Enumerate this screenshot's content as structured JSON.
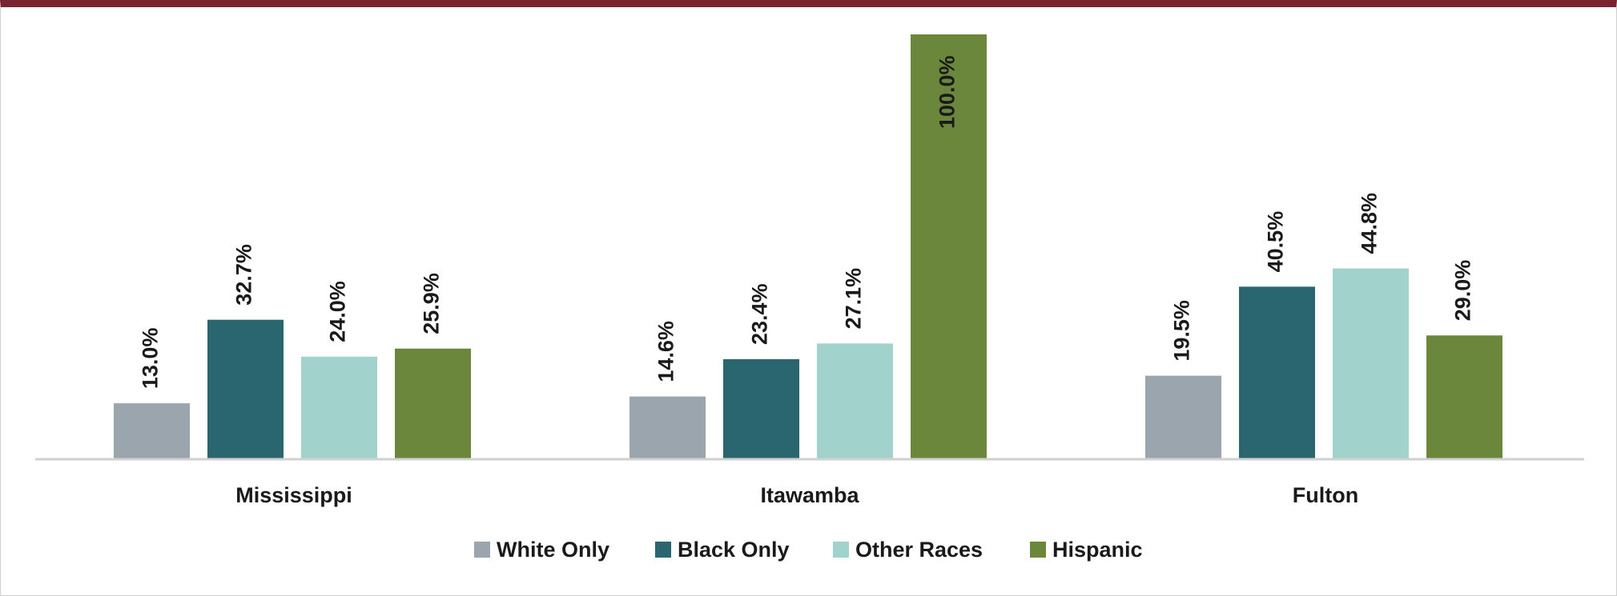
{
  "chart_data": {
    "type": "bar",
    "categories": [
      "Mississippi",
      "Itawamba",
      "Fulton"
    ],
    "series": [
      {
        "name": "White Only",
        "color": "#9aa5ae",
        "values": [
          13.0,
          14.6,
          19.5
        ],
        "labels": [
          "13.0%",
          "14.6%",
          "19.5%"
        ]
      },
      {
        "name": "Black Only",
        "color": "#29666f",
        "values": [
          32.7,
          23.4,
          40.5
        ],
        "labels": [
          "32.7%",
          "23.4%",
          "40.5%"
        ]
      },
      {
        "name": "Other Races",
        "color": "#a1d3cc",
        "values": [
          24.0,
          27.1,
          44.8
        ],
        "labels": [
          "24.0%",
          "27.1%",
          "44.8%"
        ]
      },
      {
        "name": "Hispanic",
        "color": "#6a873b",
        "values": [
          25.9,
          100.0,
          29.0
        ],
        "labels": [
          "25.9%",
          "100.0%",
          "29.0%"
        ]
      }
    ],
    "ylim": [
      0,
      100
    ],
    "grid": false,
    "legend": "bottom",
    "title": "",
    "xlabel": "",
    "ylabel": ""
  },
  "colors": {
    "top_border": "#7a2330",
    "axis_line": "#d0d0d0"
  }
}
